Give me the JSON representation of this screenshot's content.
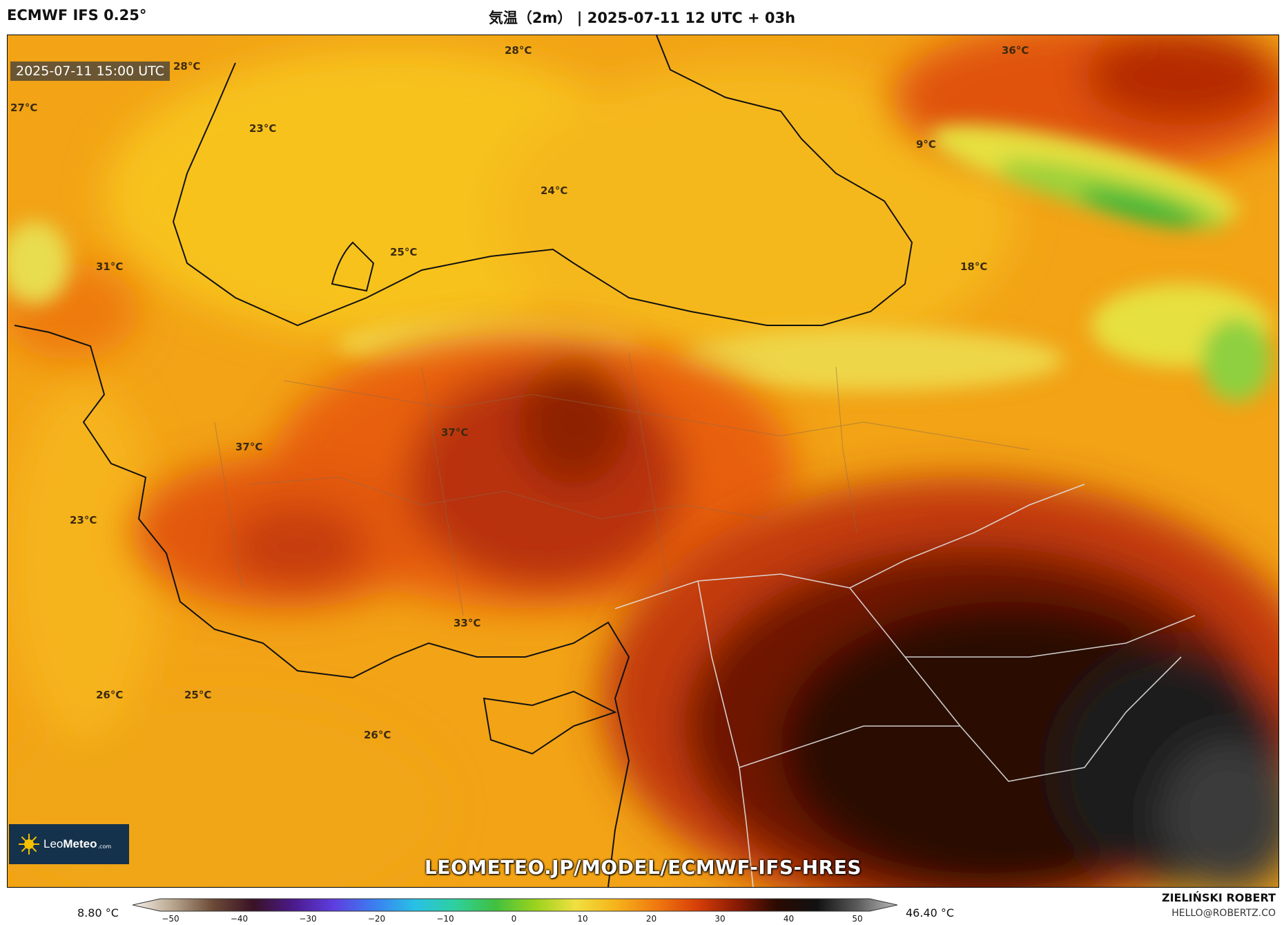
{
  "header": {
    "model": "ECMWF IFS 0.25°",
    "title": "気温（2m） | 2025-07-11 12 UTC + 03h"
  },
  "map": {
    "valid_time": "2025-07-11 15:00 UTC",
    "temperature_labels": [
      "28°C",
      "28°C",
      "36°C",
      "27°C",
      "23°C",
      "24°C",
      "9°C",
      "25°C",
      "31°C",
      "18°C",
      "37°C",
      "37°C",
      "23°C",
      "33°C",
      "26°C",
      "25°C",
      "26°C"
    ],
    "watermark": "LEOMETEO.JP/MODEL/ECMWF-IFS-HRES",
    "logo": {
      "brand_light": "Leo",
      "brand_bold": "Meteo",
      "domain": ".com"
    }
  },
  "colorbar": {
    "min_label": "8.80 °C",
    "max_label": "46.40 °C",
    "ticks": [
      "−50",
      "−40",
      "−30",
      "−20",
      "−10",
      "0",
      "10",
      "20",
      "30",
      "40",
      "50"
    ],
    "colors": [
      "#f6f2ea",
      "#b8a58e",
      "#6b4a36",
      "#3a1226",
      "#4b1a8c",
      "#5e3ee0",
      "#3c7df0",
      "#28c0e6",
      "#2ed0a0",
      "#40c040",
      "#9ad21e",
      "#f0e040",
      "#f5b41a",
      "#f07a10",
      "#d84008",
      "#8a1a04",
      "#2a0a02",
      "#111111",
      "#5a5a5a",
      "#bdbdbd"
    ]
  },
  "credits": {
    "author": "ZIELIŃSKI ROBERT",
    "email": "HELLO@ROBERTZ.CO"
  }
}
